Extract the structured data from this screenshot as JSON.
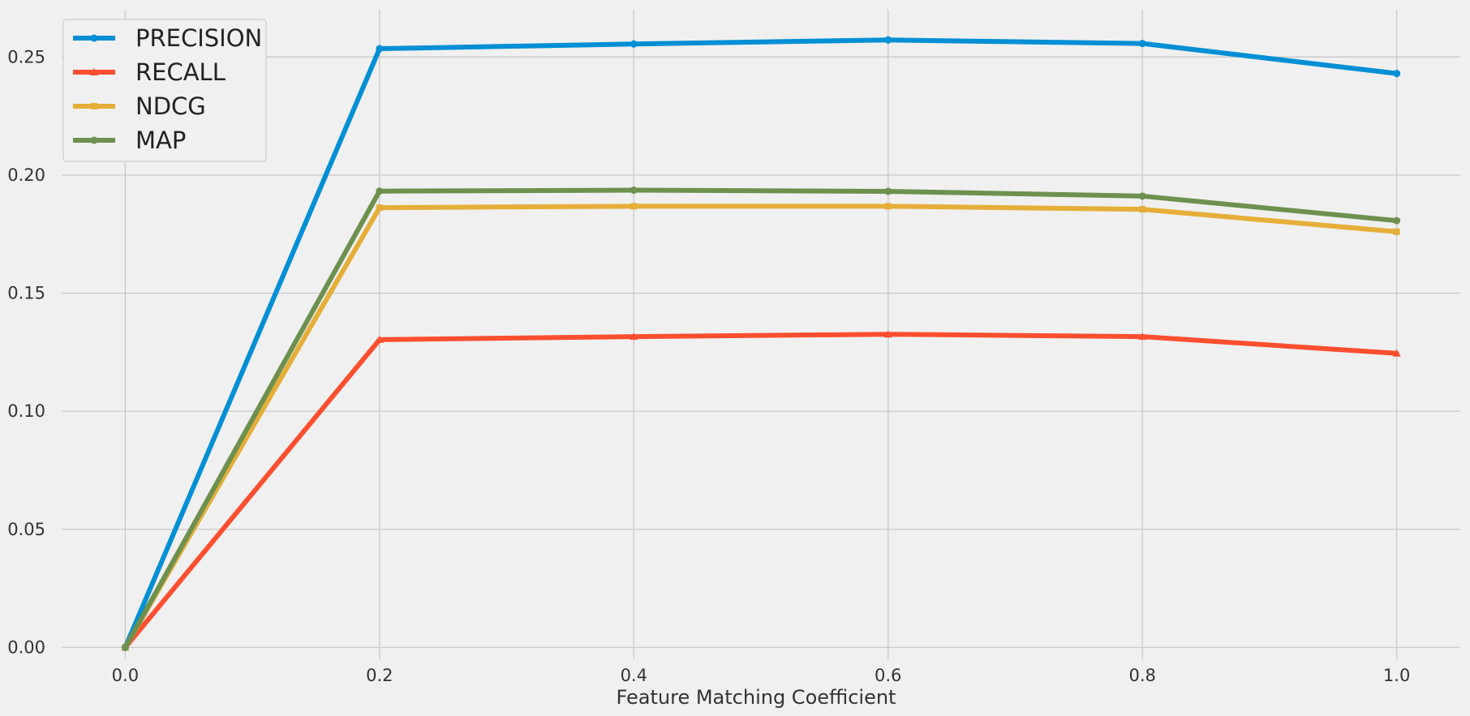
{
  "chart_data": {
    "type": "line",
    "title": "",
    "xlabel": "Feature Matching Coefficient",
    "ylabel": "",
    "x": [
      0.0,
      0.2,
      0.4,
      0.6,
      0.8,
      1.0
    ],
    "xlim": [
      -0.05,
      1.05
    ],
    "ylim": [
      -0.005,
      0.27
    ],
    "xticks": [
      "0.0",
      "0.2",
      "0.4",
      "0.6",
      "0.8",
      "1.0"
    ],
    "yticks": [
      "0.00",
      "0.05",
      "0.10",
      "0.15",
      "0.20",
      "0.25"
    ],
    "grid": true,
    "legend_position": "top-left",
    "series": [
      {
        "name": "PRECISION",
        "color": "#008fd5",
        "marker": "circle",
        "values": [
          0.0,
          0.2535,
          0.2555,
          0.2572,
          0.2557,
          0.243
        ]
      },
      {
        "name": "RECALL",
        "color": "#fc4f30",
        "marker": "triangle",
        "values": [
          0.0,
          0.1303,
          0.1316,
          0.1326,
          0.1316,
          0.1245
        ]
      },
      {
        "name": "NDCG",
        "color": "#e5ae38",
        "marker": "square",
        "values": [
          0.0,
          0.1862,
          0.1868,
          0.1868,
          0.1855,
          0.176
        ]
      },
      {
        "name": "MAP",
        "color": "#6d904f",
        "marker": "circle",
        "values": [
          0.0,
          0.1932,
          0.1936,
          0.1931,
          0.1911,
          0.1807
        ]
      }
    ]
  }
}
